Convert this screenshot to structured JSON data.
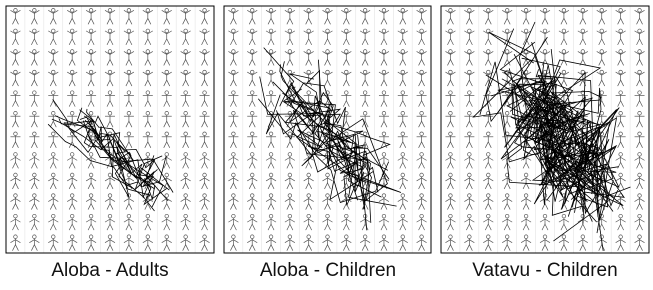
{
  "panels": [
    {
      "caption": "Aloba - Adults"
    },
    {
      "caption": "Aloba - Children"
    },
    {
      "caption": "Vatavu - Children"
    }
  ]
}
